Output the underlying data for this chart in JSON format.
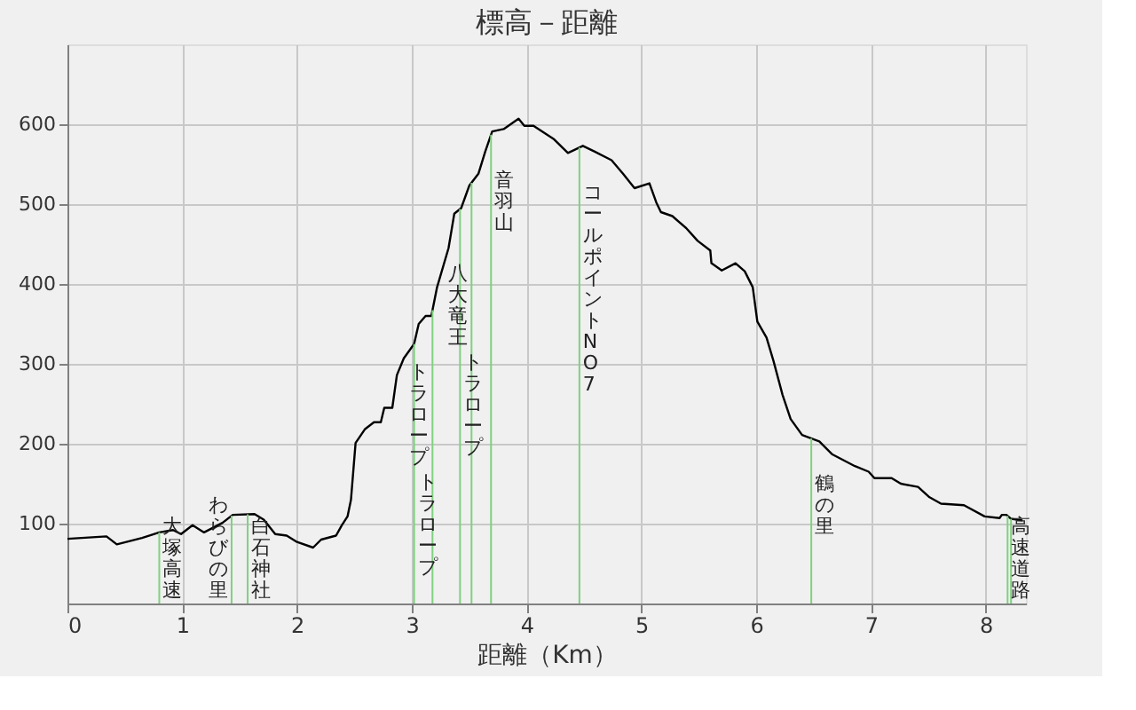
{
  "chart_data": {
    "type": "line",
    "title": "標高－距離",
    "xlabel": "距離（Km）",
    "x": [
      0,
      0.34,
      0.43,
      0.65,
      0.8,
      0.92,
      0.99,
      1.09,
      1.19,
      1.35,
      1.44,
      1.63,
      1.71,
      1.81,
      1.91,
      2.0,
      2.14,
      2.21,
      2.34,
      2.39,
      2.44,
      2.47,
      2.51,
      2.59,
      2.67,
      2.73,
      2.76,
      2.83,
      2.87,
      2.93,
      3.02,
      3.06,
      3.12,
      3.17,
      3.22,
      3.32,
      3.37,
      3.43,
      3.5,
      3.58,
      3.64,
      3.7,
      3.8,
      3.93,
      3.98,
      4.06,
      4.24,
      4.36,
      4.49,
      4.59,
      4.74,
      4.84,
      4.94,
      5.07,
      5.13,
      5.17,
      5.27,
      5.39,
      5.49,
      5.6,
      5.61,
      5.7,
      5.82,
      5.9,
      5.97,
      6.01,
      6.09,
      6.15,
      6.23,
      6.3,
      6.4,
      6.55,
      6.66,
      6.86,
      6.98,
      7.03,
      7.18,
      7.26,
      7.41,
      7.51,
      7.61,
      7.81,
      7.99,
      8.12,
      8.14,
      8.18,
      8.22,
      8.32
    ],
    "series": [
      {
        "color": "#000000",
        "values": [
          81,
          84,
          74,
          82,
          89,
          92,
          87,
          98,
          89,
          101,
          111,
          112,
          105,
          87,
          85,
          77,
          70,
          80,
          85,
          98,
          109,
          130,
          201,
          218,
          227,
          227,
          245,
          245,
          286,
          307,
          325,
          350,
          360,
          360,
          396,
          445,
          488,
          495,
          523,
          538,
          566,
          591,
          594,
          607,
          598,
          598,
          581,
          564,
          573,
          566,
          555,
          538,
          520,
          526,
          502,
          490,
          485,
          470,
          454,
          442,
          426,
          417,
          426,
          416,
          396,
          353,
          333,
          304,
          261,
          231,
          211,
          203,
          187,
          172,
          165,
          157,
          157,
          150,
          146,
          133,
          125,
          123,
          109,
          107,
          111,
          111,
          106,
          104
        ]
      }
    ],
    "xlim": [
      0,
      8.35
    ],
    "ylim": [
      0,
      700
    ],
    "xticks": [
      0,
      1,
      2,
      3,
      4,
      5,
      6,
      7,
      8
    ],
    "yticks": [
      100,
      200,
      300,
      400,
      500,
      600
    ],
    "grid": true,
    "legend": false,
    "ref_lines": [
      {
        "axis": "x",
        "value": 0.8,
        "label": "大塚高速",
        "color": "#80d080"
      },
      {
        "axis": "x",
        "value": 1.43,
        "label": "わらびの里",
        "color": "#80d080"
      },
      {
        "axis": "x",
        "value": 1.57,
        "label": "白石神社",
        "color": "#80d080"
      },
      {
        "axis": "x",
        "value": 3.02,
        "label": "トラロープ",
        "color": "#80d080"
      },
      {
        "axis": "x",
        "value": 3.18,
        "label": "トラロープ",
        "color": "#80d080"
      },
      {
        "axis": "x",
        "value": 3.42,
        "label": "トラロープ",
        "color": "#80d080"
      },
      {
        "axis": "x",
        "value": 3.52,
        "label": "八大竜王",
        "color": "#80d080"
      },
      {
        "axis": "x",
        "value": 3.69,
        "label": "音羽山",
        "color": "#80d080"
      },
      {
        "axis": "x",
        "value": 4.46,
        "label": "コールポイント NO7",
        "color": "#80d080"
      },
      {
        "axis": "x",
        "value": 6.48,
        "label": "鶴の里",
        "color": "#80d080"
      },
      {
        "axis": "x",
        "value": 8.19,
        "label": "高速道路",
        "color": "#80d080"
      },
      {
        "axis": "x",
        "value": 8.22,
        "label": null,
        "color": "#80d080"
      }
    ]
  }
}
